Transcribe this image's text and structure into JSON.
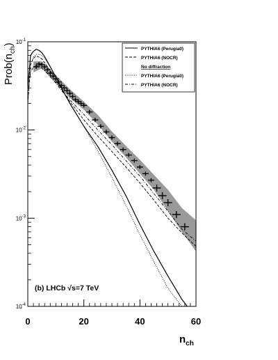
{
  "chart_data": {
    "type": "line",
    "xlabel_main": "n",
    "xlabel_sub": "ch",
    "ylabel_main": "Prob(n",
    "ylabel_sub": "ch",
    "ylabel_close": ")",
    "annotation": "(b) LHCb √s=7 TeV",
    "xlim": [
      0,
      60
    ],
    "ylim": [
      0.0001,
      0.1
    ],
    "yscale": "log",
    "x_ticks": [
      "0",
      "20",
      "40",
      "60"
    ],
    "x_tick_values": [
      0,
      20,
      40,
      60
    ],
    "y_ticks": [
      {
        "base": "10",
        "exp": "-1",
        "value": 0.1
      },
      {
        "base": "10",
        "exp": "-2",
        "value": 0.01
      },
      {
        "base": "10",
        "exp": "-3",
        "value": 0.001
      },
      {
        "base": "10",
        "exp": "-4",
        "value": 0.0001
      }
    ],
    "legend": {
      "placement": "top-right",
      "entries": [
        {
          "label": "PYTHIA6 (Perugia0)",
          "style": "solid"
        },
        {
          "label": "PYTHIA6 (NOCR)",
          "style": "dashed"
        },
        {
          "label": "No diffraction",
          "style": "header"
        },
        {
          "label": "PYTHIA6 (Perugia0)",
          "style": "dotted"
        },
        {
          "label": "PYTHIA6 (NOCR)",
          "style": "dashdot"
        }
      ]
    },
    "series": [
      {
        "style": "solid",
        "x": [
          0,
          1,
          2,
          3,
          4,
          5,
          6,
          8,
          10,
          12,
          15,
          20,
          25,
          30,
          35,
          40,
          45,
          50,
          55,
          58,
          60
        ],
        "y": [
          0.03,
          0.07,
          0.078,
          0.082,
          0.08,
          0.075,
          0.068,
          0.052,
          0.04,
          0.03,
          0.02,
          0.011,
          0.0065,
          0.0035,
          0.0018,
          0.00085,
          0.00042,
          0.00022,
          0.00012,
          9e-05,
          0.0001
        ]
      },
      {
        "style": "dashed",
        "x": [
          0,
          1,
          2,
          3,
          4,
          5,
          6,
          8,
          10,
          12,
          15,
          20,
          25,
          30,
          35,
          40,
          45,
          50,
          55,
          58,
          60
        ],
        "y": [
          0.02,
          0.055,
          0.065,
          0.069,
          0.067,
          0.064,
          0.058,
          0.047,
          0.037,
          0.029,
          0.021,
          0.013,
          0.0085,
          0.0057,
          0.0038,
          0.0025,
          0.0016,
          0.001,
          0.00068,
          0.00055,
          0.00048
        ]
      },
      {
        "style": "dotted",
        "x": [
          0,
          1,
          2,
          3,
          4,
          5,
          6,
          8,
          10,
          12,
          15,
          20,
          25,
          30,
          35,
          40,
          45,
          50,
          55,
          58,
          60
        ],
        "y": [
          0.02,
          0.055,
          0.067,
          0.072,
          0.072,
          0.07,
          0.065,
          0.052,
          0.04,
          0.03,
          0.02,
          0.011,
          0.0058,
          0.0029,
          0.0014,
          0.00065,
          0.00032,
          0.00016,
          0.0001,
          0.0001,
          0.0001
        ]
      },
      {
        "style": "dashdot",
        "x": [
          0,
          1,
          2,
          3,
          4,
          5,
          6,
          8,
          10,
          12,
          15,
          20,
          25,
          30,
          35,
          40,
          45,
          50,
          55,
          58,
          60
        ],
        "y": [
          0.025,
          0.045,
          0.052,
          0.054,
          0.053,
          0.05,
          0.047,
          0.04,
          0.034,
          0.028,
          0.022,
          0.015,
          0.01,
          0.0068,
          0.0045,
          0.003,
          0.0019,
          0.0012,
          0.00075,
          0.00062,
          0.00055
        ]
      }
    ],
    "data_points": {
      "x": [
        3,
        4,
        5,
        6,
        7,
        8,
        9,
        10,
        11,
        12,
        13,
        14,
        15,
        16,
        17,
        18,
        19,
        20,
        22,
        24,
        26,
        28,
        30,
        32,
        34,
        36,
        38,
        40,
        42,
        44,
        46,
        48,
        50,
        53,
        56
      ],
      "y": [
        0.052,
        0.056,
        0.055,
        0.052,
        0.048,
        0.044,
        0.041,
        0.038,
        0.035,
        0.032,
        0.03,
        0.028,
        0.026,
        0.024,
        0.022,
        0.021,
        0.02,
        0.019,
        0.016,
        0.013,
        0.011,
        0.0095,
        0.0082,
        0.007,
        0.006,
        0.0052,
        0.0045,
        0.0038,
        0.0032,
        0.0027,
        0.0022,
        0.0018,
        0.0015,
        0.0011,
        0.0008
      ]
    },
    "error_band": {
      "x": [
        2,
        5,
        10,
        15,
        20,
        25,
        30,
        35,
        40,
        45,
        50,
        55,
        60
      ],
      "lower": [
        0.045,
        0.05,
        0.034,
        0.023,
        0.017,
        0.0115,
        0.0074,
        0.0049,
        0.0032,
        0.0021,
        0.0012,
        0.0007,
        0.00042
      ],
      "upper": [
        0.06,
        0.06,
        0.042,
        0.029,
        0.021,
        0.0148,
        0.0096,
        0.0066,
        0.0046,
        0.0031,
        0.0021,
        0.0013,
        0.00095
      ]
    }
  }
}
